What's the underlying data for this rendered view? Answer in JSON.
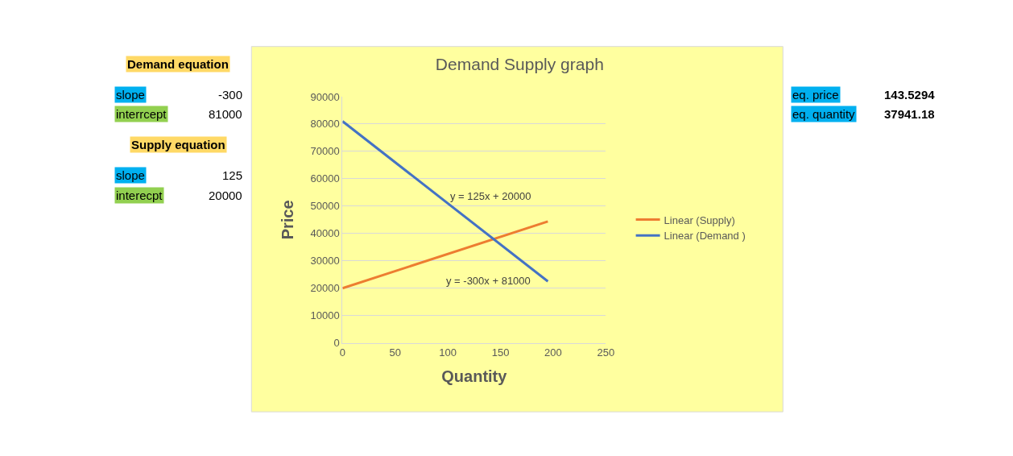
{
  "chart_data": {
    "type": "line",
    "title": "Demand Supply graph",
    "xlabel": "Quantity",
    "ylabel": "Price",
    "series": [
      {
        "name": "Linear (Supply)",
        "color": "#ed7d31",
        "values": [
          20000,
          44400
        ]
      },
      {
        "name": "Linear (Demand )",
        "color": "#4472c4",
        "values": [
          81000,
          22500
        ]
      }
    ],
    "x": [
      0,
      195
    ],
    "xlim": [
      0,
      250
    ],
    "xticks": [
      0,
      50,
      100,
      150,
      200,
      250
    ],
    "ylim": [
      0,
      90000
    ],
    "yticks": [
      0,
      10000,
      20000,
      30000,
      40000,
      50000,
      60000,
      70000,
      80000,
      90000
    ],
    "grid": "y",
    "legend": "right",
    "marker": "none",
    "line_style": "solid",
    "annotations": [
      "y = 125x + 20000",
      "y = -300x + 81000",
      "Demand equation",
      "slope",
      "-300",
      "interrcept",
      "81000",
      "Supply equation",
      "slope",
      "125",
      "interecpt",
      "20000",
      "eq. price",
      "143.5294",
      "eq. quantity",
      "37941.18"
    ]
  }
}
